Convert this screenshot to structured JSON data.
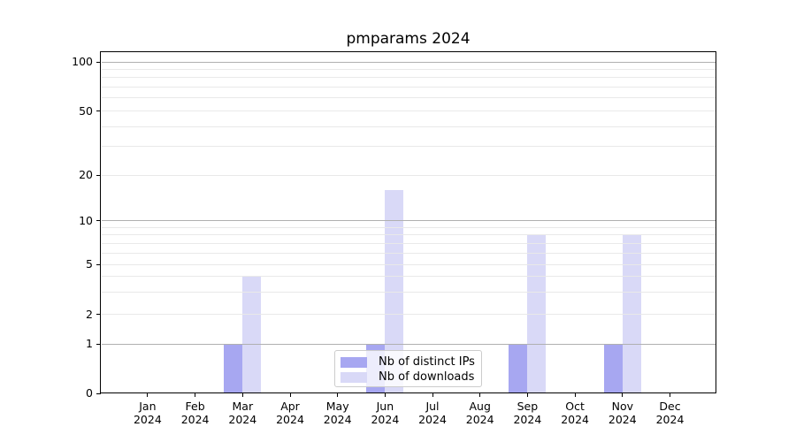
{
  "title": "pmparams 2024",
  "chart_data": {
    "type": "bar",
    "title": "pmparams 2024",
    "categories": [
      {
        "month": "Jan",
        "year": "2024"
      },
      {
        "month": "Feb",
        "year": "2024"
      },
      {
        "month": "Mar",
        "year": "2024"
      },
      {
        "month": "Apr",
        "year": "2024"
      },
      {
        "month": "May",
        "year": "2024"
      },
      {
        "month": "Jun",
        "year": "2024"
      },
      {
        "month": "Jul",
        "year": "2024"
      },
      {
        "month": "Aug",
        "year": "2024"
      },
      {
        "month": "Sep",
        "year": "2024"
      },
      {
        "month": "Oct",
        "year": "2024"
      },
      {
        "month": "Nov",
        "year": "2024"
      },
      {
        "month": "Dec",
        "year": "2024"
      }
    ],
    "series": [
      {
        "name": "Nb of distinct IPs",
        "color": "#a7a7f1",
        "values": [
          0,
          0,
          1,
          0,
          0,
          1,
          0,
          0,
          1,
          0,
          1,
          0
        ]
      },
      {
        "name": "Nb of downloads",
        "color": "#d9d9f7",
        "values": [
          0,
          0,
          4,
          0,
          0,
          16,
          0,
          0,
          8,
          0,
          8,
          0
        ]
      }
    ],
    "yscale": "symlog",
    "ylim": [
      0,
      115
    ],
    "yticks_labeled": [
      0,
      1,
      2,
      5,
      10,
      20,
      50,
      100
    ],
    "yticks_major": [
      1,
      10,
      100
    ],
    "yticks_minor_unlabeled": [
      3,
      4,
      6,
      7,
      8,
      9,
      30,
      40,
      60,
      70,
      80,
      90
    ],
    "grid": true,
    "legend_position": "lower center"
  },
  "colors": {
    "bar_distinct_ips": "#a7a7f1",
    "bar_downloads": "#d9d9f7",
    "grid_major": "#b0b0b0",
    "grid_minor": "#e9e9e9",
    "spine": "#000000",
    "legend_border": "#cccccc",
    "background": "#ffffff"
  }
}
